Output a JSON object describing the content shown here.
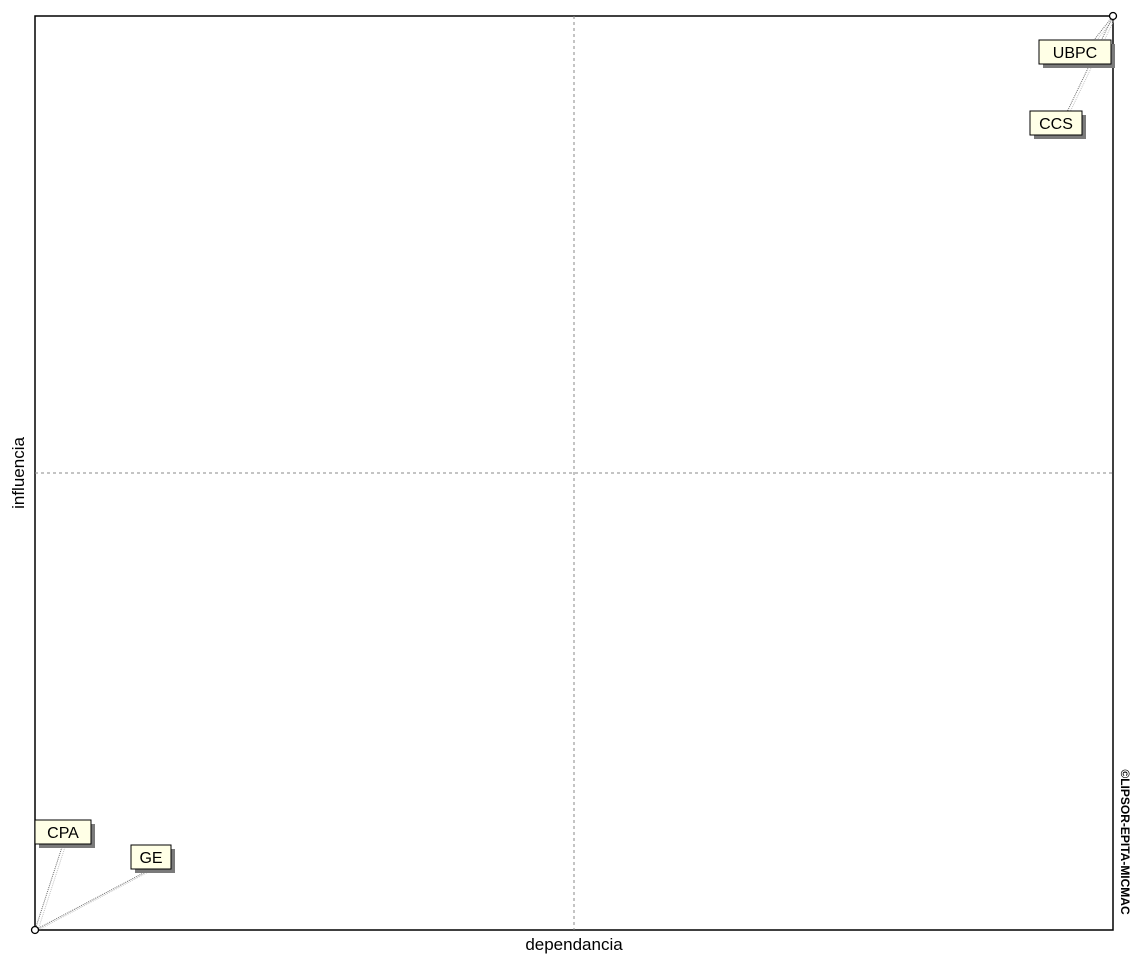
{
  "chart_data": {
    "type": "scatter",
    "xlabel": "dependancia",
    "ylabel": "influencia",
    "xlim": [
      0,
      1
    ],
    "ylim": [
      0,
      1
    ],
    "grid": false,
    "quadrant_lines": true,
    "points": [
      {
        "label": "UBPC",
        "x": 1.0,
        "y": 1.0
      },
      {
        "label": "CCS",
        "x": 1.0,
        "y": 1.0
      },
      {
        "label": "CPA",
        "x": 0.0,
        "y": 0.0
      },
      {
        "label": "GE",
        "x": 0.0,
        "y": 0.0
      }
    ],
    "colors": {
      "label_fill": "#ffffe6",
      "marker": "#000000",
      "leader": "#9a9a9a",
      "quadrant": "#888888"
    }
  },
  "watermark": "©LIPSOR-EPITA-MICMAC"
}
